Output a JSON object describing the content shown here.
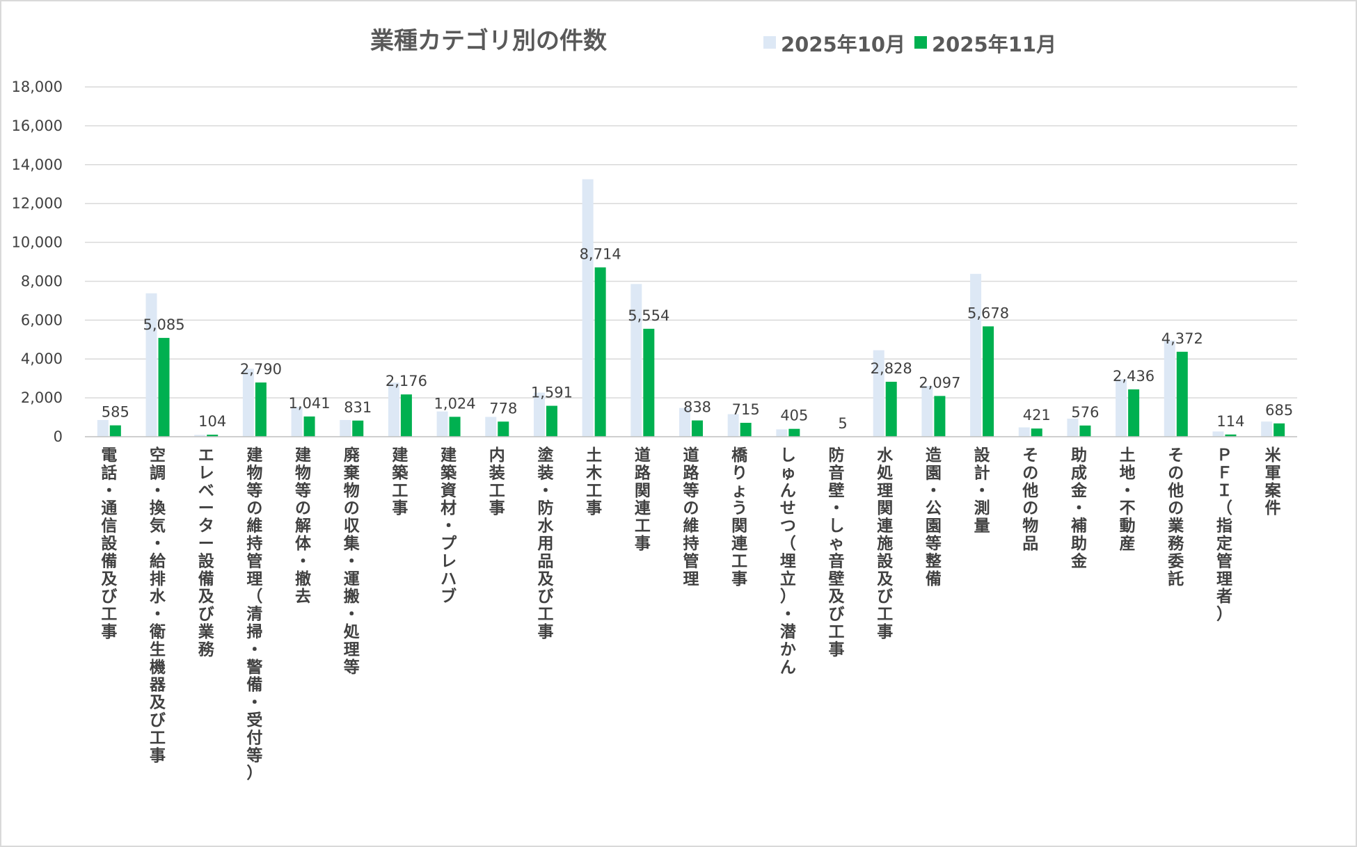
{
  "chart_data": {
    "type": "bar",
    "title": "業種カテゴリ別の件数",
    "xlabel": "",
    "ylabel": "",
    "ylim": [
      0,
      18000
    ],
    "yticks": [
      0,
      2000,
      4000,
      6000,
      8000,
      10000,
      12000,
      14000,
      16000,
      18000
    ],
    "ytick_labels": [
      "0",
      "2,000",
      "4,000",
      "6,000",
      "8,000",
      "10,000",
      "12,000",
      "14,000",
      "16,000",
      "18,000"
    ],
    "grid": true,
    "legend_position": "top",
    "categories": [
      "電話・通信設備及び工事",
      "空調・換気・給排水・衛生機器及び工事",
      "エレベーター設備及び業務",
      "建物等の維持管理（清掃・警備・受付等）",
      "建物等の解体・撤去",
      "廃棄物の収集・運搬・処理等",
      "建築工事",
      "建築資材・プレハブ",
      "内装工事",
      "塗装・防水用品及び工事",
      "土木工事",
      "道路関連工事",
      "道路等の維持管理",
      "橋りょう関連工事",
      "しゅんせつ（埋立）・潜かん",
      "防音壁・しゃ音壁及び工事",
      "水処理関連施設及び工事",
      "造園・公園等整備",
      "設計・測量",
      "その他の物品",
      "助成金・補助金",
      "土地・不動産",
      "その他の業務委託",
      "ＰＦＩ（指定管理者）",
      "米軍案件"
    ],
    "series": [
      {
        "name": "2025年10月",
        "color": "#dde8f5",
        "values": [
          860,
          7380,
          95,
          3500,
          1530,
          860,
          2780,
          1300,
          1020,
          2270,
          13250,
          7860,
          1480,
          1160,
          380,
          5,
          4450,
          2610,
          8380,
          480,
          930,
          2960,
          4950,
          270,
          780
        ]
      },
      {
        "name": "2025年11月",
        "color": "#00b050",
        "values": [
          585,
          5085,
          104,
          2790,
          1041,
          831,
          2176,
          1024,
          778,
          1591,
          8714,
          5554,
          838,
          715,
          405,
          5,
          2828,
          2097,
          5678,
          421,
          576,
          2436,
          4372,
          114,
          685
        ],
        "data_labels": [
          "585",
          "5,085",
          "104",
          "2,790",
          "1,041",
          "831",
          "2,176",
          "1,024",
          "778",
          "1,591",
          "8,714",
          "5,554",
          "838",
          "715",
          "405",
          "5",
          "2,828",
          "2,097",
          "5,678",
          "421",
          "576",
          "2,436",
          "4,372",
          "114",
          "685"
        ]
      }
    ]
  }
}
